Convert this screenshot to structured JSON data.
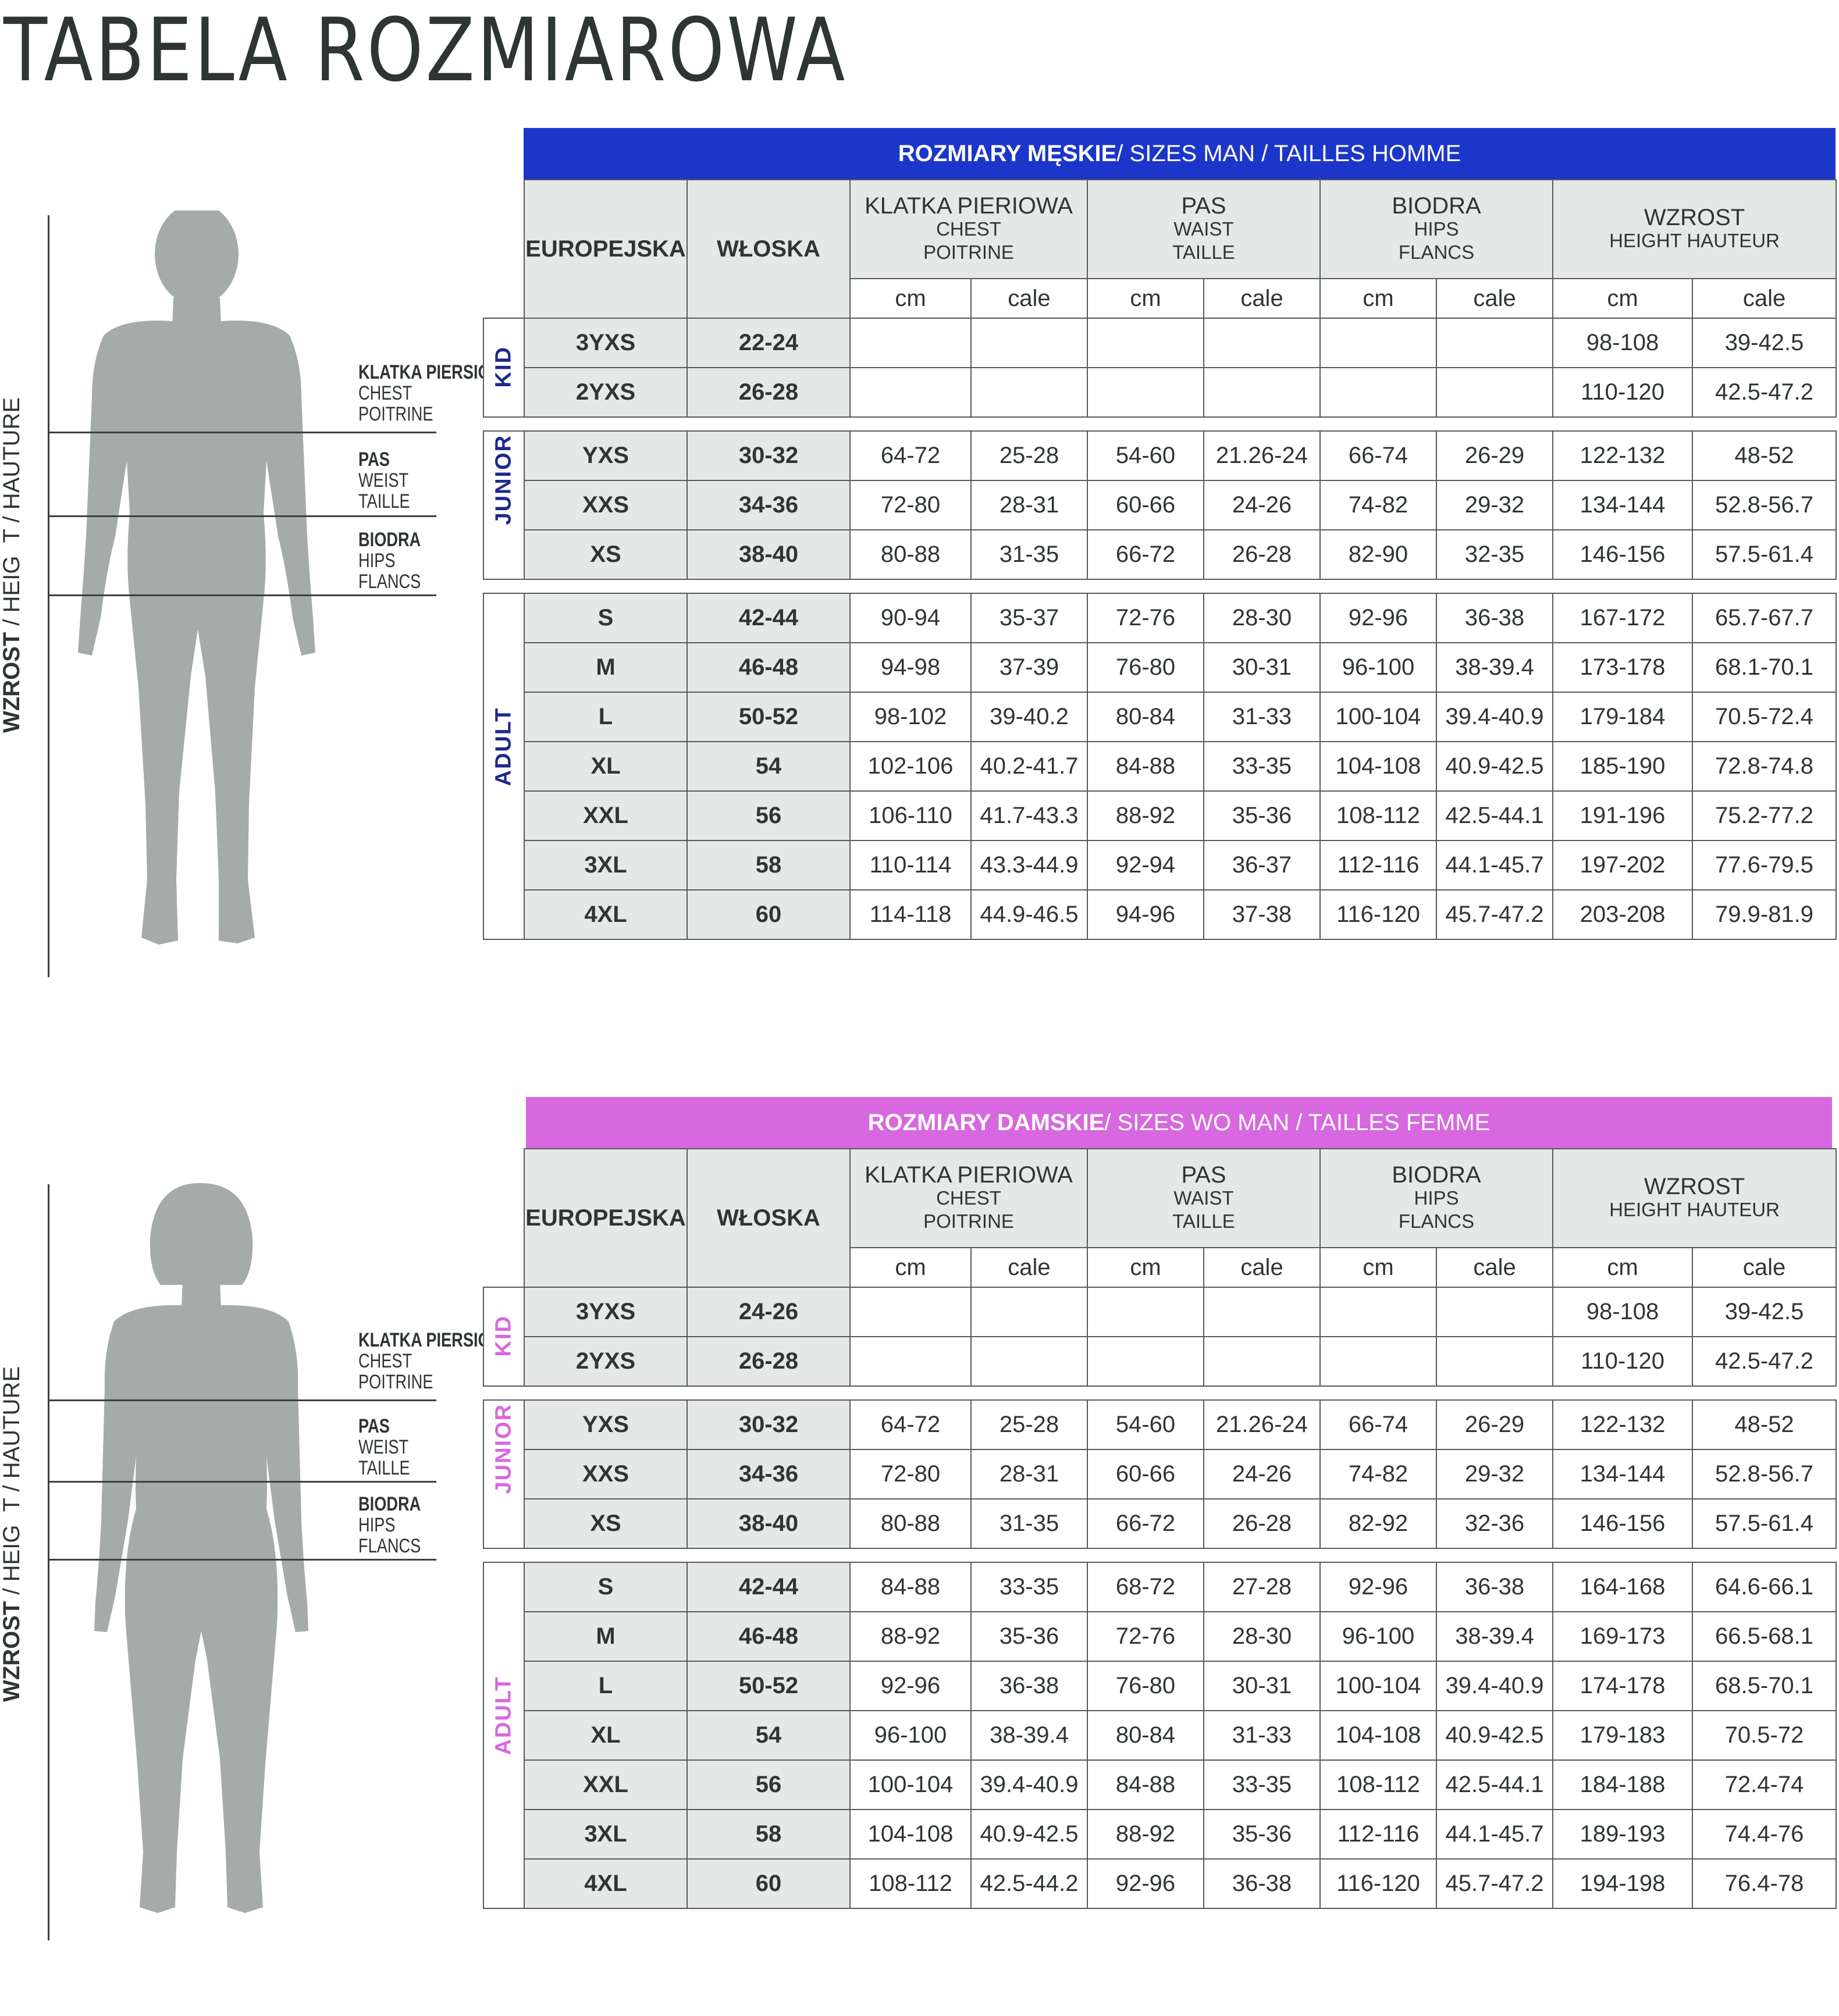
{
  "title": "TABELA ROZMIAROWA",
  "colors": {
    "men_band": "#1c36c9",
    "women_band": "#d768df",
    "men_category": "#1c2a8c",
    "women_category": "#d768df",
    "body": "#a4aba8"
  },
  "figure_labels": {
    "height": "WZROST",
    "height_sep": " / HEIG",
    "height_t": "T / HAUTURE",
    "height_h": "H",
    "measures": [
      {
        "main": "KLATKA PIERSIOWA",
        "en": "CHEST",
        "fr": "POITRINE"
      },
      {
        "main": "PAS",
        "en": "WEIST",
        "fr": "TAILLE"
      },
      {
        "main": "BIODRA",
        "en": "HIPS",
        "fr": "FLANCS"
      }
    ]
  },
  "men": {
    "band_bold": "ROZMIARY MĘSKIE",
    "band_rest": " / SIZES  MAN / TAILLES HOMME",
    "col_eu": "EUROPEJSKA",
    "col_it": "WŁOSKA",
    "groups": [
      {
        "main": "KLATKA PIERIOWA",
        "sub1": "CHEST",
        "sub2": "POITRINE"
      },
      {
        "main": "PAS",
        "sub1": "WAIST",
        "sub2": "TAILLE"
      },
      {
        "main": "BIODRA",
        "sub1": "HIPS",
        "sub2": "FLANCS"
      },
      {
        "main": "WZROST",
        "sub1": "HEIGHT HAUTEUR",
        "sub2": ""
      }
    ],
    "unit_cm": "cm",
    "unit_cale": "cale",
    "categories": {
      "kid": "KID",
      "junior": "JUNIOR",
      "adult": "ADULT"
    },
    "kid": [
      [
        "3YXS",
        "22-24",
        "",
        "",
        "",
        "",
        "",
        "",
        "98-108",
        "39-42.5"
      ],
      [
        "2YXS",
        "26-28",
        "",
        "",
        "",
        "",
        "",
        "",
        "110-120",
        "42.5-47.2"
      ]
    ],
    "junior": [
      [
        "YXS",
        "30-32",
        "64-72",
        "25-28",
        "54-60",
        "21.26-24",
        "66-74",
        "26-29",
        "122-132",
        "48-52"
      ],
      [
        "XXS",
        "34-36",
        "72-80",
        "28-31",
        "60-66",
        "24-26",
        "74-82",
        "29-32",
        "134-144",
        "52.8-56.7"
      ],
      [
        "XS",
        "38-40",
        "80-88",
        "31-35",
        "66-72",
        "26-28",
        "82-90",
        "32-35",
        "146-156",
        "57.5-61.4"
      ]
    ],
    "adult": [
      [
        "S",
        "42-44",
        "90-94",
        "35-37",
        "72-76",
        "28-30",
        "92-96",
        "36-38",
        "167-172",
        "65.7-67.7"
      ],
      [
        "M",
        "46-48",
        "94-98",
        "37-39",
        "76-80",
        "30-31",
        "96-100",
        "38-39.4",
        "173-178",
        "68.1-70.1"
      ],
      [
        "L",
        "50-52",
        "98-102",
        "39-40.2",
        "80-84",
        "31-33",
        "100-104",
        "39.4-40.9",
        "179-184",
        "70.5-72.4"
      ],
      [
        "XL",
        "54",
        "102-106",
        "40.2-41.7",
        "84-88",
        "33-35",
        "104-108",
        "40.9-42.5",
        "185-190",
        "72.8-74.8"
      ],
      [
        "XXL",
        "56",
        "106-110",
        "41.7-43.3",
        "88-92",
        "35-36",
        "108-112",
        "42.5-44.1",
        "191-196",
        "75.2-77.2"
      ],
      [
        "3XL",
        "58",
        "110-114",
        "43.3-44.9",
        "92-94",
        "36-37",
        "112-116",
        "44.1-45.7",
        "197-202",
        "77.6-79.5"
      ],
      [
        "4XL",
        "60",
        "114-118",
        "44.9-46.5",
        "94-96",
        "37-38",
        "116-120",
        "45.7-47.2",
        "203-208",
        "79.9-81.9"
      ]
    ]
  },
  "women": {
    "band_bold": "ROZMIARY DAMSKIE",
    "band_rest": " / SIZES WO MAN / TAILLES FEMME",
    "col_eu": "EUROPEJSKA",
    "col_it": "WŁOSKA",
    "groups": [
      {
        "main": "KLATKA PIERIOWA",
        "sub1": "CHEST",
        "sub2": "POITRINE"
      },
      {
        "main": "PAS",
        "sub1": "WAIST",
        "sub2": "TAILLE"
      },
      {
        "main": "BIODRA",
        "sub1": "HIPS",
        "sub2": "FLANCS"
      },
      {
        "main": "WZROST",
        "sub1": "HEIGHT HAUTEUR",
        "sub2": ""
      }
    ],
    "unit_cm": "cm",
    "unit_cale": "cale",
    "categories": {
      "kid": "KID",
      "junior": "JUNIOR",
      "adult": "ADULT"
    },
    "kid": [
      [
        "3YXS",
        "24-26",
        "",
        "",
        "",
        "",
        "",
        "",
        "98-108",
        "39-42.5"
      ],
      [
        "2YXS",
        "26-28",
        "",
        "",
        "",
        "",
        "",
        "",
        "110-120",
        "42.5-47.2"
      ]
    ],
    "junior": [
      [
        "YXS",
        "30-32",
        "64-72",
        "25-28",
        "54-60",
        "21.26-24",
        "66-74",
        "26-29",
        "122-132",
        "48-52"
      ],
      [
        "XXS",
        "34-36",
        "72-80",
        "28-31",
        "60-66",
        "24-26",
        "74-82",
        "29-32",
        "134-144",
        "52.8-56.7"
      ],
      [
        "XS",
        "38-40",
        "80-88",
        "31-35",
        "66-72",
        "26-28",
        "82-92",
        "32-36",
        "146-156",
        "57.5-61.4"
      ]
    ],
    "adult": [
      [
        "S",
        "42-44",
        "84-88",
        "33-35",
        "68-72",
        "27-28",
        "92-96",
        "36-38",
        "164-168",
        "64.6-66.1"
      ],
      [
        "M",
        "46-48",
        "88-92",
        "35-36",
        "72-76",
        "28-30",
        "96-100",
        "38-39.4",
        "169-173",
        "66.5-68.1"
      ],
      [
        "L",
        "50-52",
        "92-96",
        "36-38",
        "76-80",
        "30-31",
        "100-104",
        "39.4-40.9",
        "174-178",
        "68.5-70.1"
      ],
      [
        "XL",
        "54",
        "96-100",
        "38-39.4",
        "80-84",
        "31-33",
        "104-108",
        "40.9-42.5",
        "179-183",
        "70.5-72"
      ],
      [
        "XXL",
        "56",
        "100-104",
        "39.4-40.9",
        "84-88",
        "33-35",
        "108-112",
        "42.5-44.1",
        "184-188",
        "72.4-74"
      ],
      [
        "3XL",
        "58",
        "104-108",
        "40.9-42.5",
        "88-92",
        "35-36",
        "112-116",
        "44.1-45.7",
        "189-193",
        "74.4-76"
      ],
      [
        "4XL",
        "60",
        "108-112",
        "42.5-44.2",
        "92-96",
        "36-38",
        "116-120",
        "45.7-47.2",
        "194-198",
        "76.4-78"
      ]
    ]
  }
}
